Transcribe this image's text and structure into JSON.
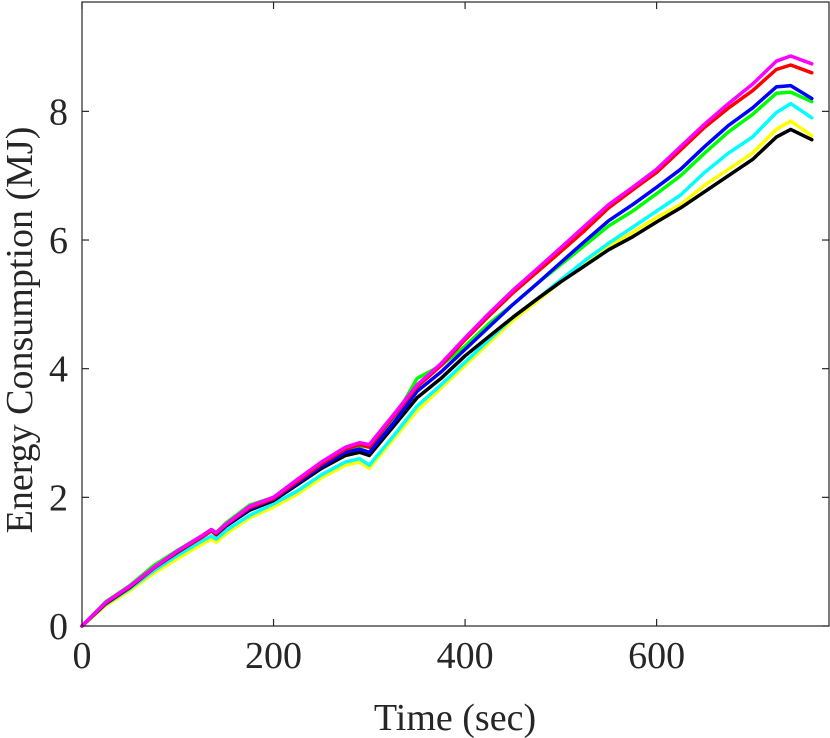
{
  "chart_data": {
    "type": "line",
    "title": "",
    "xlabel": "Time (sec)",
    "ylabel": "Energy Consumption (MJ)",
    "xlim": [
      0,
      780
    ],
    "ylim": [
      0,
      9.7
    ],
    "xticks": [
      0,
      200,
      400,
      600
    ],
    "yticks": [
      0,
      2,
      4,
      6,
      8
    ],
    "xtick_labels": [
      "0",
      "200",
      "400",
      "600"
    ],
    "ytick_labels": [
      "0",
      "2",
      "4",
      "6",
      "8"
    ],
    "grid": false,
    "legend": "none",
    "series": [
      {
        "color": "#ffff00",
        "x": [
          0,
          25,
          50,
          75,
          100,
          125,
          135,
          140,
          150,
          175,
          200,
          225,
          250,
          275,
          290,
          300,
          325,
          350,
          375,
          400,
          425,
          450,
          475,
          500,
          525,
          550,
          575,
          600,
          625,
          650,
          675,
          700,
          725,
          740,
          762
        ],
        "y": [
          0,
          0.32,
          0.55,
          0.82,
          1.05,
          1.27,
          1.35,
          1.3,
          1.43,
          1.68,
          1.85,
          2.05,
          2.3,
          2.5,
          2.55,
          2.45,
          2.9,
          3.35,
          3.7,
          4.05,
          4.4,
          4.75,
          5.05,
          5.35,
          5.62,
          5.9,
          6.12,
          6.35,
          6.55,
          6.85,
          7.1,
          7.35,
          7.72,
          7.85,
          7.62
        ]
      },
      {
        "color": "#00ffff",
        "x": [
          0,
          25,
          50,
          75,
          100,
          125,
          135,
          140,
          150,
          175,
          200,
          225,
          250,
          275,
          290,
          300,
          325,
          350,
          375,
          400,
          425,
          450,
          475,
          500,
          525,
          550,
          575,
          600,
          625,
          650,
          675,
          700,
          725,
          740,
          762
        ],
        "y": [
          0,
          0.34,
          0.58,
          0.86,
          1.1,
          1.32,
          1.4,
          1.35,
          1.48,
          1.72,
          1.9,
          2.1,
          2.35,
          2.55,
          2.6,
          2.5,
          2.95,
          3.42,
          3.75,
          4.1,
          4.45,
          4.8,
          5.08,
          5.38,
          5.68,
          5.95,
          6.2,
          6.45,
          6.7,
          7.05,
          7.35,
          7.6,
          7.98,
          8.12,
          7.9
        ]
      },
      {
        "color": "#000000",
        "x": [
          0,
          25,
          50,
          75,
          100,
          125,
          135,
          140,
          150,
          175,
          200,
          225,
          250,
          275,
          290,
          300,
          325,
          350,
          375,
          400,
          425,
          450,
          475,
          500,
          525,
          550,
          575,
          600,
          625,
          650,
          675,
          700,
          725,
          740,
          762
        ],
        "y": [
          0,
          0.35,
          0.6,
          0.9,
          1.15,
          1.38,
          1.48,
          1.42,
          1.55,
          1.8,
          1.95,
          2.2,
          2.45,
          2.65,
          2.7,
          2.65,
          3.1,
          3.55,
          3.85,
          4.2,
          4.5,
          4.8,
          5.08,
          5.35,
          5.6,
          5.85,
          6.05,
          6.28,
          6.5,
          6.75,
          7.0,
          7.25,
          7.6,
          7.72,
          7.56
        ]
      },
      {
        "color": "#00ff00",
        "x": [
          0,
          25,
          50,
          75,
          100,
          125,
          135,
          140,
          150,
          175,
          200,
          225,
          250,
          275,
          290,
          300,
          325,
          350,
          375,
          400,
          425,
          450,
          475,
          500,
          525,
          550,
          575,
          600,
          625,
          650,
          675,
          700,
          725,
          740,
          762
        ],
        "y": [
          0,
          0.38,
          0.63,
          0.94,
          1.18,
          1.4,
          1.5,
          1.45,
          1.6,
          1.88,
          2.0,
          2.25,
          2.5,
          2.75,
          2.8,
          2.78,
          3.2,
          3.85,
          4.05,
          4.35,
          4.7,
          5.0,
          5.32,
          5.62,
          5.92,
          6.22,
          6.45,
          6.72,
          7.0,
          7.35,
          7.68,
          7.95,
          8.28,
          8.3,
          8.15
        ]
      },
      {
        "color": "#0000ff",
        "x": [
          0,
          25,
          50,
          75,
          100,
          125,
          135,
          140,
          150,
          175,
          200,
          225,
          250,
          275,
          290,
          300,
          325,
          350,
          375,
          400,
          425,
          450,
          475,
          500,
          525,
          550,
          575,
          600,
          625,
          650,
          675,
          700,
          725,
          740,
          762
        ],
        "y": [
          0,
          0.36,
          0.61,
          0.9,
          1.16,
          1.38,
          1.48,
          1.43,
          1.56,
          1.82,
          1.97,
          2.22,
          2.48,
          2.7,
          2.75,
          2.7,
          3.15,
          3.65,
          3.95,
          4.3,
          4.65,
          5.0,
          5.32,
          5.65,
          5.98,
          6.3,
          6.55,
          6.82,
          7.1,
          7.45,
          7.78,
          8.05,
          8.38,
          8.4,
          8.2
        ]
      },
      {
        "color": "#ff0000",
        "x": [
          0,
          25,
          50,
          75,
          100,
          125,
          135,
          140,
          150,
          175,
          200,
          225,
          250,
          275,
          290,
          300,
          325,
          350,
          375,
          400,
          425,
          450,
          475,
          500,
          525,
          550,
          575,
          600,
          625,
          650,
          675,
          700,
          725,
          740,
          762
        ],
        "y": [
          0,
          0.36,
          0.61,
          0.9,
          1.16,
          1.38,
          1.48,
          1.43,
          1.57,
          1.84,
          1.98,
          2.25,
          2.52,
          2.75,
          2.82,
          2.78,
          3.25,
          3.72,
          4.05,
          4.45,
          4.82,
          5.18,
          5.5,
          5.82,
          6.15,
          6.5,
          6.78,
          7.05,
          7.4,
          7.75,
          8.05,
          8.32,
          8.65,
          8.72,
          8.6
        ]
      },
      {
        "color": "#ff00ff",
        "x": [
          0,
          25,
          50,
          75,
          100,
          125,
          135,
          140,
          150,
          175,
          200,
          225,
          250,
          275,
          290,
          300,
          325,
          350,
          375,
          400,
          425,
          450,
          475,
          500,
          525,
          550,
          575,
          600,
          625,
          650,
          675,
          700,
          725,
          740,
          762
        ],
        "y": [
          0,
          0.37,
          0.62,
          0.91,
          1.17,
          1.4,
          1.5,
          1.45,
          1.58,
          1.86,
          2.0,
          2.28,
          2.55,
          2.78,
          2.85,
          2.82,
          3.28,
          3.75,
          4.08,
          4.48,
          4.86,
          5.22,
          5.55,
          5.88,
          6.22,
          6.55,
          6.82,
          7.1,
          7.45,
          7.8,
          8.12,
          8.42,
          8.78,
          8.86,
          8.74
        ]
      }
    ]
  }
}
